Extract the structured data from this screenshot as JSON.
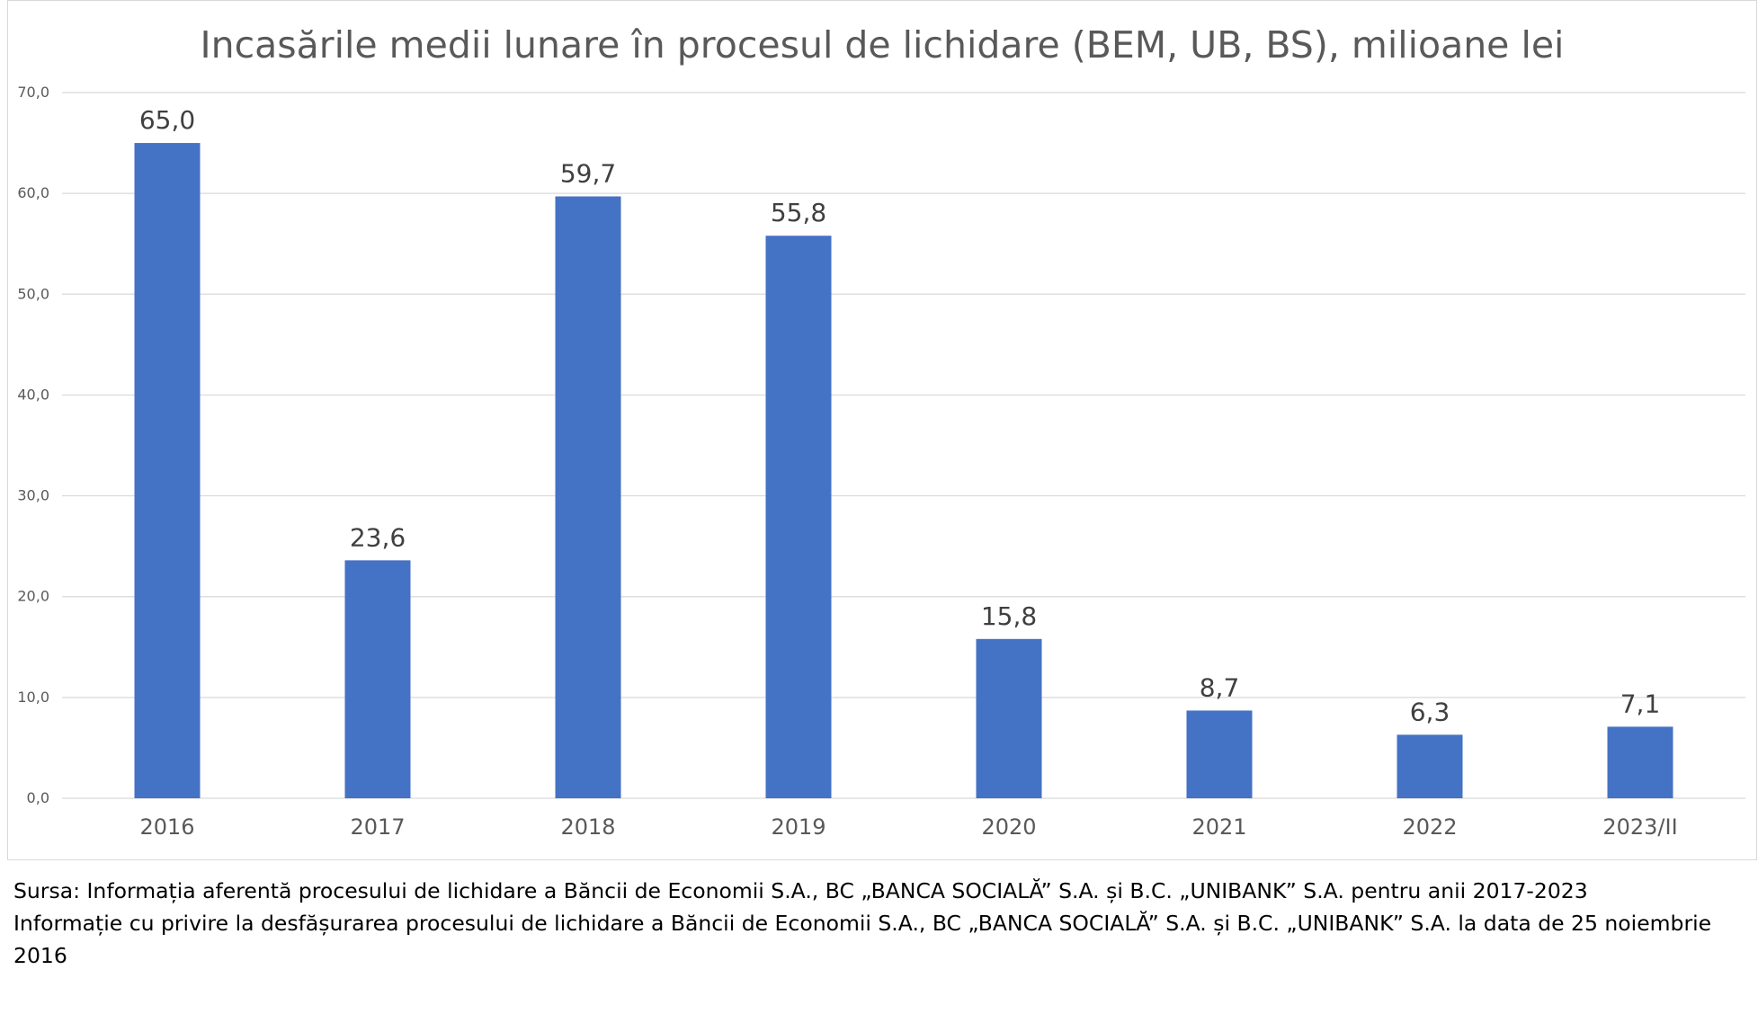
{
  "chart_data": {
    "type": "bar",
    "title": "Incasările medii lunare în procesul de lichidare (BEM, UB, BS), milioane lei",
    "categories": [
      "2016",
      "2017",
      "2018",
      "2019",
      "2020",
      "2021",
      "2022",
      "2023/II"
    ],
    "values": [
      65.0,
      23.6,
      59.7,
      55.8,
      15.8,
      8.7,
      6.3,
      7.1
    ],
    "value_labels": [
      "65,0",
      "23,6",
      "59,7",
      "55,8",
      "15,8",
      "8,7",
      "6,3",
      "7,1"
    ],
    "ylim": [
      0,
      70
    ],
    "yticks": [
      0,
      10,
      20,
      30,
      40,
      50,
      60,
      70
    ],
    "ytick_labels": [
      "0,0",
      "10,0",
      "20,0",
      "30,0",
      "40,0",
      "50,0",
      "60,0",
      "70,0"
    ],
    "xlabel": "",
    "ylabel": "",
    "grid": true,
    "legend": "none",
    "bar_color": "#4472C4"
  },
  "source": {
    "line1": "Sursa: Informația aferentă procesului de lichidare a Băncii de Economii S.A., BC „BANCA SOCIALĂ” S.A. și B.C. „UNIBANK” S.A. pentru anii 2017-2023",
    "line2": "Informație cu privire la desfășurarea procesului de lichidare a Băncii de Economii S.A., BC „BANCA SOCIALĂ” S.A. și B.C. „UNIBANK” S.A. la data de 25 noiembrie 2016"
  }
}
